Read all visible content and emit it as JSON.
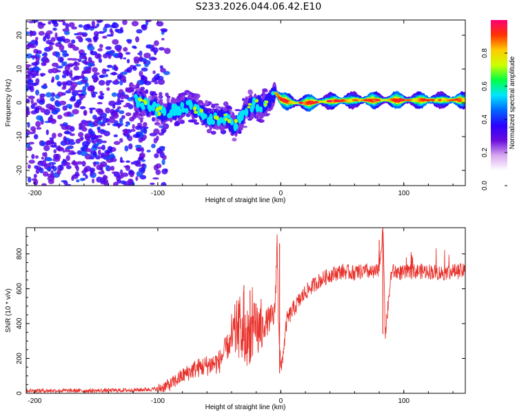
{
  "title": "S233.2026.044.06.42.E10",
  "chart_data": [
    {
      "type": "heatmap",
      "title": "S233.2026.044.06.42.E10",
      "xlabel": "Height of straight line (km)",
      "ylabel": "Frequency (Hz)",
      "xlim": [
        -207,
        150
      ],
      "ylim": [
        -24.5,
        24.5
      ],
      "xticks": [
        -200,
        -100,
        0,
        100
      ],
      "yticks": [
        -20,
        -10,
        0,
        10,
        20
      ],
      "colorbar": {
        "label": "Normalized spectral amplitude",
        "range": [
          0,
          1
        ],
        "ticks": [
          "0.0",
          "0.2",
          "0.4",
          "0.6",
          "0.8"
        ],
        "tick_values": [
          0.0,
          0.2,
          0.4,
          0.6,
          0.8
        ],
        "colors": [
          "#ffffff",
          "#ffffff",
          "#d8a8f0",
          "#6a0ddd",
          "#2a00ff",
          "#0066ff",
          "#00e5ff",
          "#00ff44",
          "#ccff00",
          "#ffcc00",
          "#ff3300",
          "#ff0077"
        ]
      },
      "ridge": {
        "x": [
          -115,
          -105,
          -95,
          -85,
          -75,
          -65,
          -55,
          -45,
          -38,
          -30,
          -25,
          -20,
          -15,
          -12,
          -8,
          -4,
          0,
          10,
          20,
          40,
          60,
          80,
          100,
          120,
          150
        ],
        "y": [
          0,
          -1,
          -3,
          -2,
          -1,
          -3,
          -5,
          -4,
          -7,
          -3,
          -1,
          -0.5,
          -1,
          0,
          1,
          3,
          1,
          0,
          0,
          0.5,
          0.8,
          0.8,
          0.8,
          0.8,
          0.8
        ]
      },
      "noise_region_x": [
        -207,
        -100
      ]
    },
    {
      "type": "line",
      "xlabel": "Height of straight line (km)",
      "ylabel": "SNR (10 * v/v)",
      "xlim": [
        -207,
        150
      ],
      "ylim": [
        0,
        950
      ],
      "xticks": [
        -200,
        -100,
        0,
        100
      ],
      "yticks": [
        0,
        200,
        400,
        600,
        800
      ],
      "line_color": "#e8312b",
      "series": [
        {
          "name": "SNR",
          "x": [
            -207,
            -180,
            -150,
            -120,
            -100,
            -90,
            -80,
            -70,
            -60,
            -50,
            -45,
            -40,
            -35,
            -30,
            -25,
            -20,
            -15,
            -10,
            -5,
            -3,
            -2,
            0,
            5,
            10,
            15,
            20,
            25,
            30,
            35,
            40,
            50,
            60,
            70,
            75,
            80,
            83,
            85,
            90,
            100,
            110,
            120,
            130,
            140,
            150
          ],
          "y": [
            15,
            15,
            15,
            18,
            25,
            50,
            100,
            140,
            160,
            180,
            250,
            300,
            380,
            300,
            340,
            360,
            380,
            420,
            450,
            860,
            470,
            120,
            420,
            480,
            530,
            580,
            610,
            640,
            660,
            680,
            700,
            690,
            700,
            690,
            700,
            950,
            340,
            700,
            690,
            700,
            700,
            690,
            700,
            700
          ]
        }
      ],
      "spikes": [
        {
          "x": -30,
          "y": 620
        },
        {
          "x": -25,
          "y": 590
        },
        {
          "x": -1,
          "y": 860
        },
        {
          "x": -1,
          "y": 115
        },
        {
          "x": 80,
          "y": 880
        },
        {
          "x": 83,
          "y": 950
        },
        {
          "x": 83,
          "y": 340
        }
      ]
    }
  ]
}
